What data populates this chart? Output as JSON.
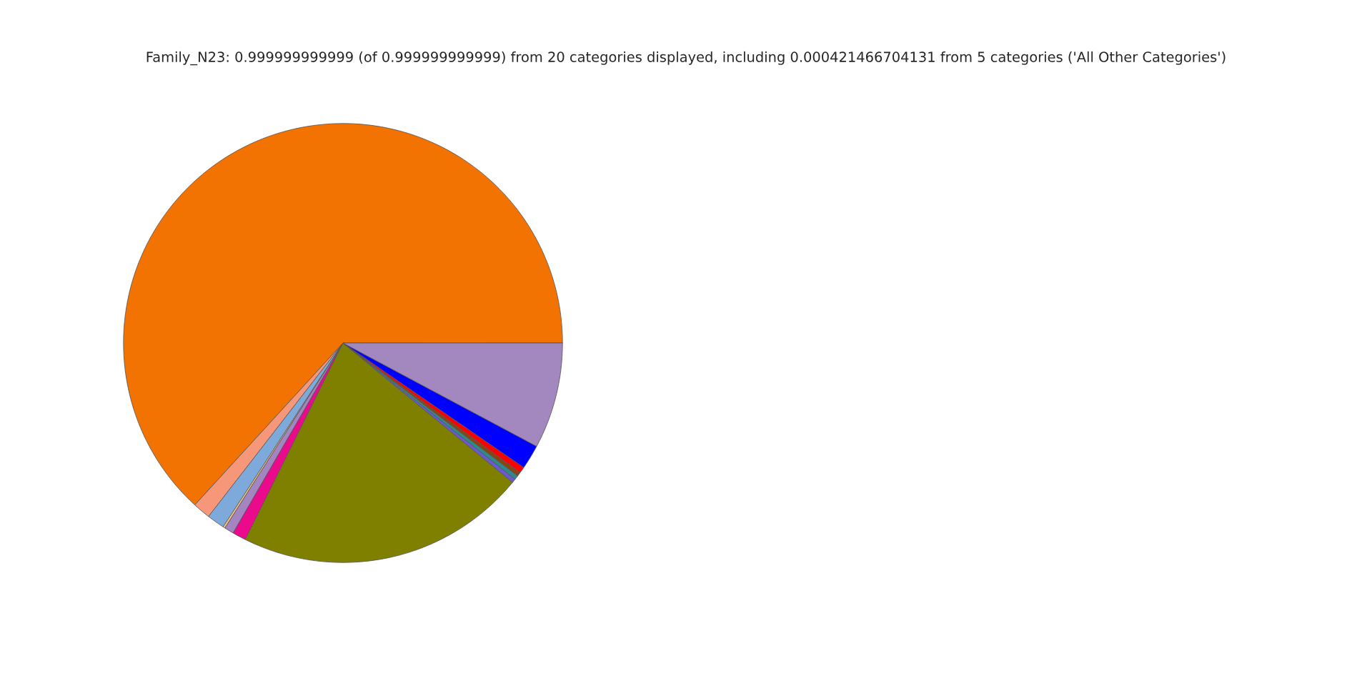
{
  "chart_data": {
    "type": "pie",
    "title": "Family_N23: 0.999999999999 (of 0.999999999999) from 20 categories displayed, including 0.000421466704131 from 5 categories ('All Other Categories')",
    "categories": [
      null,
      null,
      null,
      null,
      null,
      null,
      null,
      null,
      null,
      null,
      null,
      null,
      null
    ],
    "values": [
      63.2,
      1.3,
      1.3,
      0.15,
      0.7,
      1.0,
      21.39,
      0.3,
      0.3,
      0.3,
      0.45,
      1.8,
      7.8
    ],
    "colors": [
      "#f37302",
      "#f7977a",
      "#7eaadb",
      "#fdc77d",
      "#a385c2",
      "#ec0a8c",
      "#808000",
      "#6a5acd",
      "#2e8b8b",
      "#8b4513",
      "#ff0000",
      "#0000ff",
      "#a388c0"
    ]
  }
}
